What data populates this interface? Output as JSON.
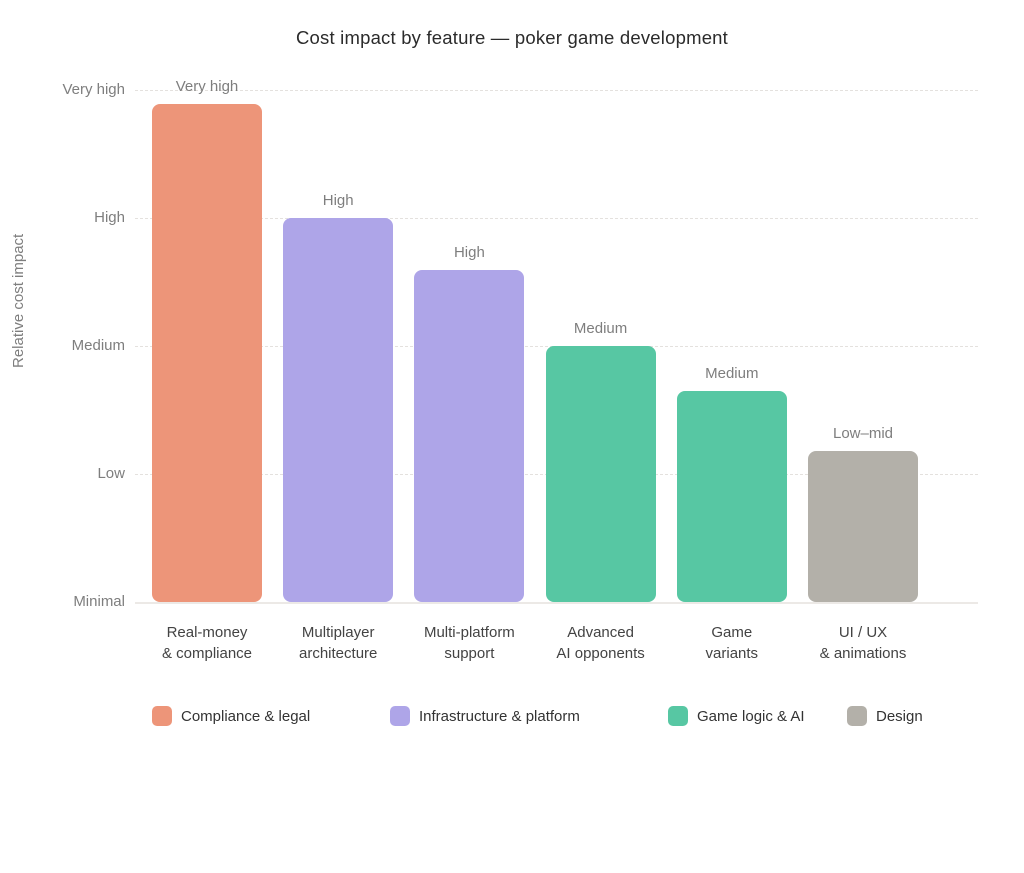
{
  "chart_data": {
    "type": "bar",
    "title": "Cost impact by feature — poker game development",
    "xlabel": "",
    "ylabel": "Relative cost impact",
    "ylim": [
      0,
      4.3
    ],
    "y_ticks": [
      {
        "value": 0,
        "label": "Minimal"
      },
      {
        "value": 1,
        "label": "Low"
      },
      {
        "value": 2,
        "label": "Medium"
      },
      {
        "value": 3,
        "label": "High"
      },
      {
        "value": 4,
        "label": "Very high"
      }
    ],
    "grid": "horizontal-dashed",
    "legend_position": "bottom",
    "bars": [
      {
        "category": "Real-money & compliance",
        "category_lines": [
          "Real-money",
          "& compliance"
        ],
        "value": 3.89,
        "value_label": "Very high",
        "group": "Compliance & legal",
        "color": "#ed9579"
      },
      {
        "category": "Multiplayer architecture",
        "category_lines": [
          "Multiplayer",
          "architecture"
        ],
        "value": 3.0,
        "value_label": "High",
        "group": "Infrastructure & platform",
        "color": "#aea5e8"
      },
      {
        "category": "Multi-platform support",
        "category_lines": [
          "Multi-platform",
          "support"
        ],
        "value": 2.59,
        "value_label": "High",
        "group": "Infrastructure & platform",
        "color": "#aea5e8"
      },
      {
        "category": "Advanced AI opponents",
        "category_lines": [
          "Advanced",
          "AI opponents"
        ],
        "value": 2.0,
        "value_label": "Medium",
        "group": "Game logic & AI",
        "color": "#57c7a3"
      },
      {
        "category": "Game variants",
        "category_lines": [
          "Game",
          "variants"
        ],
        "value": 1.65,
        "value_label": "Medium",
        "group": "Game logic & AI",
        "color": "#57c7a3"
      },
      {
        "category": "UI / UX & animations",
        "category_lines": [
          "UI / UX",
          "& animations"
        ],
        "value": 1.18,
        "value_label": "Low–mid",
        "group": "Design",
        "color": "#b3b0a9"
      }
    ],
    "legend": [
      {
        "label": "Compliance & legal",
        "color": "#ed9579"
      },
      {
        "label": "Infrastructure & platform",
        "color": "#aea5e8"
      },
      {
        "label": "Game logic & AI",
        "color": "#57c7a3"
      },
      {
        "label": "Design",
        "color": "#b3b0a9"
      }
    ],
    "colors": {
      "background": "#ffffff",
      "gridline": "#e4e1de",
      "baseline": "#ece9e6",
      "axis_text": "#7e7e7e",
      "category_text": "#434343",
      "title_text": "#2b2b2b"
    }
  }
}
